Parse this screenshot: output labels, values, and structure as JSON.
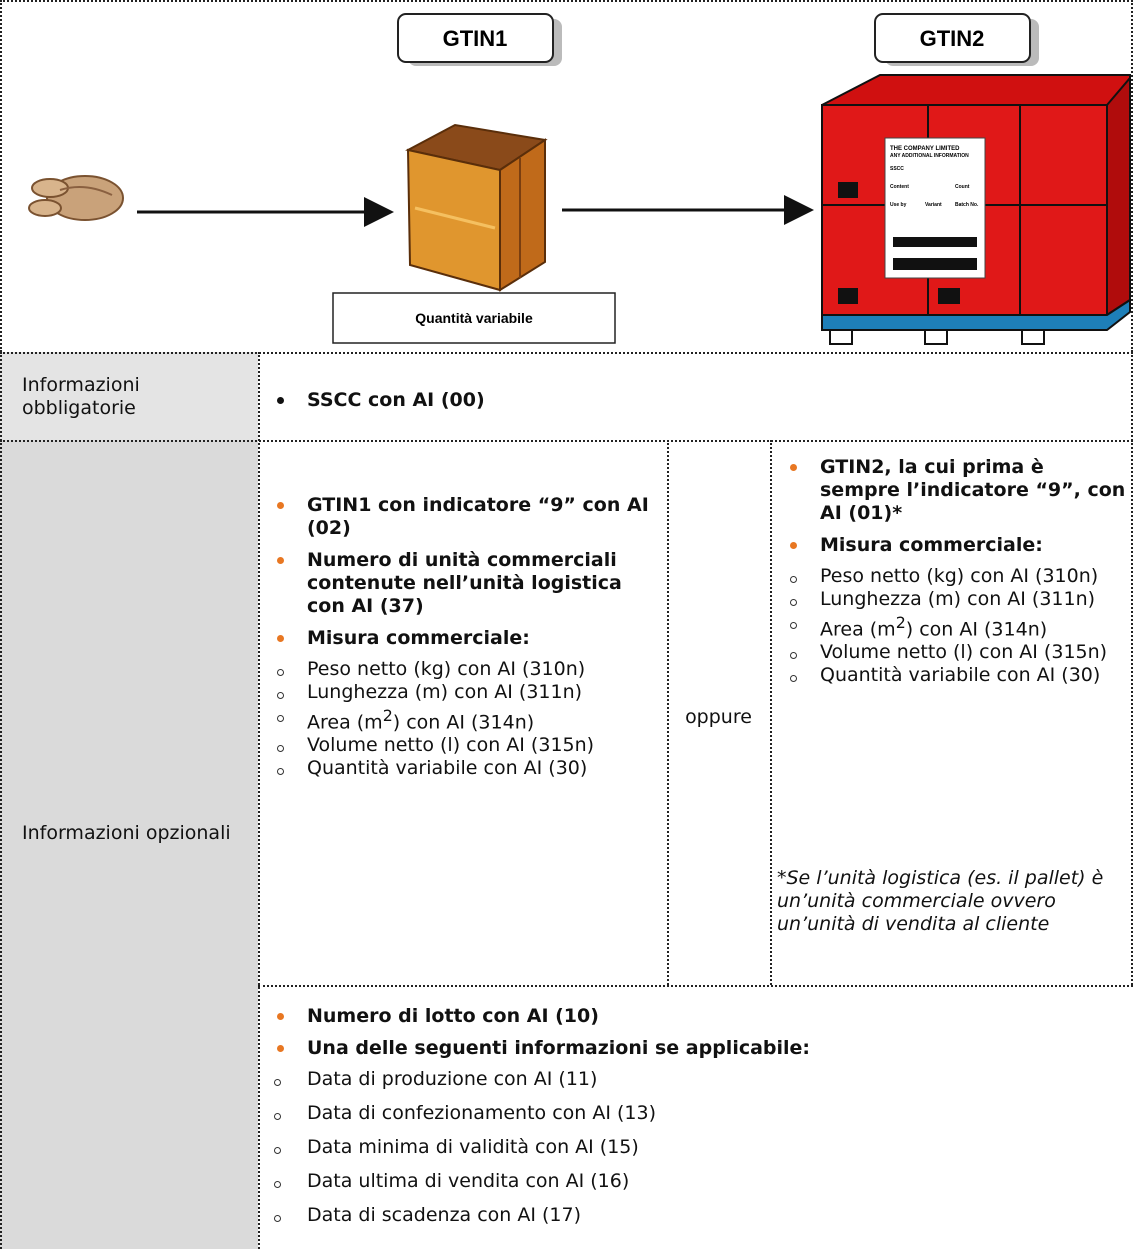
{
  "diagram": {
    "gtin1": "GTIN1",
    "gtin2": "GTIN2",
    "box_label": "Quantità variabile",
    "pallet_label": {
      "company": "THE COMPANY LIMITED",
      "info": "ANY ADDITIONAL INFORMATION",
      "sscc": "SSCC",
      "content": "Content",
      "count": "Count",
      "use_by": "Use by",
      "variant": "Variant",
      "batch": "Batch No."
    }
  },
  "table": {
    "rows": [
      {
        "label": "Informazioni obbligatorie",
        "items": [
          {
            "text": "SSCC con AI (00)"
          }
        ]
      },
      {
        "label": "Informazioni opzionali",
        "left": [
          {
            "text": "GTIN1 con indicatore “9” con AI (02)"
          },
          {
            "text": "Numero di unità commerciali contenute nell’unità logistica con AI (37)"
          },
          {
            "text": "Misura commerciale:",
            "sub": [
              {
                "text": "Peso netto (kg) con AI (310n)"
              },
              {
                "text": "Lunghezza (m) con AI (311n)"
              },
              {
                "before": "Area (m",
                "sup": "2",
                "after": ") con AI (314n)"
              },
              {
                "text": "Volume netto (l) con AI (315n)"
              },
              {
                "text": "Quantità variabile con AI (30)"
              }
            ]
          }
        ],
        "separator": "oppure",
        "right": [
          {
            "text": "GTIN2, la cui prima è sempre l’indicatore “9”, con AI (01)*"
          },
          {
            "text": "Misura commerciale:",
            "sub": [
              {
                "text": "Peso netto (kg) con AI (310n)"
              },
              {
                "text": "Lunghezza (m) con AI (311n)"
              },
              {
                "before": "Area (m",
                "sup": "2",
                "after": ") con AI (314n)"
              },
              {
                "text": "Volume netto (l) con AI (315n)"
              },
              {
                "text": "Quantità variabile con AI (30)"
              }
            ]
          }
        ],
        "note": "*Se l’unità logistica (es. il pallet) è un’unità commerciale ovvero un’unità di vendita al cliente",
        "bottom": [
          {
            "text": "Numero di lotto con AI (10)"
          },
          {
            "text": "Una delle seguenti informazioni se applicabile:",
            "sub": [
              {
                "text": "Data di produzione con AI (11)"
              },
              {
                "text": "Data di confezionamento con AI (13)"
              },
              {
                "text": "Data minima di validità con AI (15)"
              },
              {
                "text": "Data ultima di vendita con AI (16)"
              },
              {
                "text": "Data di scadenza con AI (17)"
              }
            ]
          }
        ]
      }
    ]
  }
}
